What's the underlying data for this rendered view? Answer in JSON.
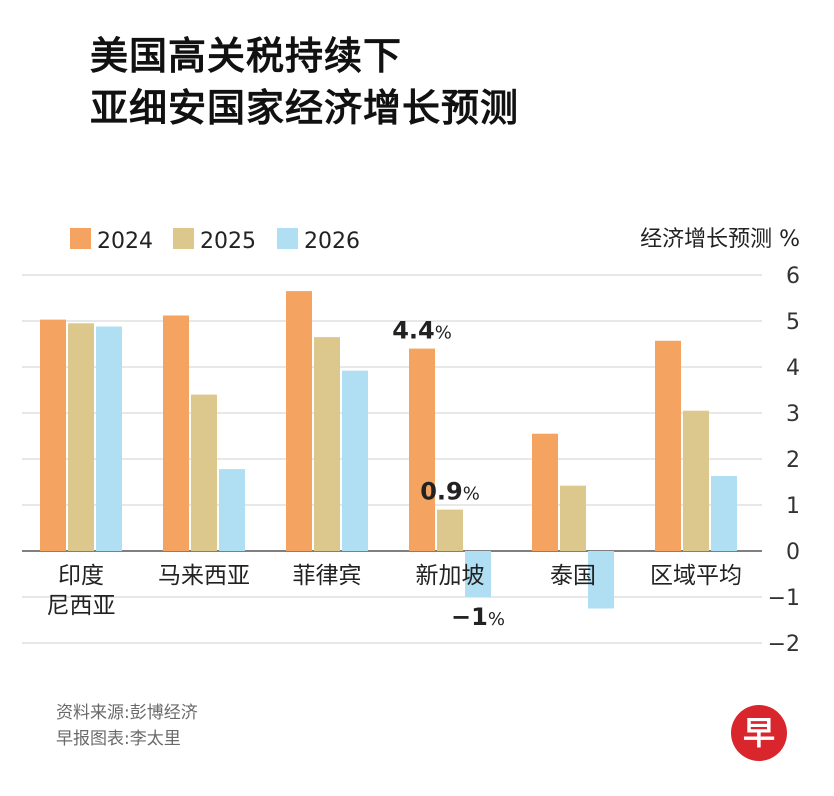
{
  "title": {
    "line1": "美国高关税持续下",
    "line2": "亚细安国家经济增长预测"
  },
  "footer": {
    "source": "资料来源:彭博经济",
    "credit": "早报图表:李太里"
  },
  "logo": {
    "text": "早",
    "color": "#d9262c"
  },
  "chart_data": {
    "type": "bar",
    "ylabel": "经济增长预测 %",
    "ylim": [
      -2,
      6
    ],
    "yticks": [
      6,
      5,
      4,
      3,
      2,
      1,
      0,
      -1,
      -2
    ],
    "grid": true,
    "legend_position": "top-left",
    "categories": [
      "印度\n尼西亚",
      "马来西亚",
      "菲律宾",
      "新加坡",
      "泰国",
      "区域平均"
    ],
    "series": [
      {
        "name": "2024",
        "color": "#f4a460",
        "values": [
          5.03,
          5.12,
          5.65,
          4.4,
          2.55,
          4.57
        ]
      },
      {
        "name": "2025",
        "color": "#dcc88c",
        "values": [
          4.95,
          3.4,
          4.65,
          0.9,
          1.42,
          3.05
        ]
      },
      {
        "name": "2026",
        "color": "#b0dff3",
        "values": [
          4.88,
          1.78,
          3.92,
          -1.0,
          -1.25,
          1.63
        ]
      }
    ],
    "annotations": [
      {
        "category_index": 3,
        "series_index": 0,
        "value": "4.4",
        "unit": "%"
      },
      {
        "category_index": 3,
        "series_index": 1,
        "value": "0.9",
        "unit": "%"
      },
      {
        "category_index": 3,
        "series_index": 2,
        "value": "−1",
        "unit": "%"
      }
    ]
  }
}
